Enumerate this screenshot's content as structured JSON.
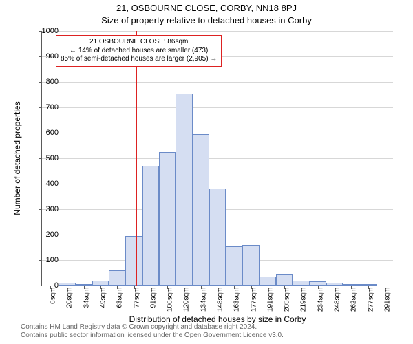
{
  "titles": {
    "main": "21, OSBOURNE CLOSE, CORBY, NN18 8PJ",
    "sub": "Size of property relative to detached houses in Corby"
  },
  "axes": {
    "ylabel": "Number of detached properties",
    "xlabel": "Distribution of detached houses by size in Corby",
    "ylim_max": 1000,
    "ytick_step": 100,
    "grid_color": "#d7d7d7",
    "label_fontsize": 12,
    "tick_fontsize": 11
  },
  "chart": {
    "type": "histogram",
    "bar_fill": "#d5def2",
    "bar_border": "#6b8bc8",
    "bar_border_width": 1,
    "plot_background": "#ffffff",
    "bars": [
      {
        "label": "6sqm",
        "value": 0
      },
      {
        "label": "20sqm",
        "value": 10
      },
      {
        "label": "34sqm",
        "value": 5
      },
      {
        "label": "49sqm",
        "value": 20
      },
      {
        "label": "63sqm",
        "value": 60
      },
      {
        "label": "77sqm",
        "value": 195
      },
      {
        "label": "91sqm",
        "value": 470
      },
      {
        "label": "106sqm",
        "value": 525
      },
      {
        "label": "120sqm",
        "value": 755
      },
      {
        "label": "134sqm",
        "value": 595
      },
      {
        "label": "148sqm",
        "value": 380
      },
      {
        "label": "163sqm",
        "value": 155
      },
      {
        "label": "177sqm",
        "value": 160
      },
      {
        "label": "191sqm",
        "value": 35
      },
      {
        "label": "205sqm",
        "value": 45
      },
      {
        "label": "219sqm",
        "value": 20
      },
      {
        "label": "234sqm",
        "value": 15
      },
      {
        "label": "248sqm",
        "value": 10
      },
      {
        "label": "262sqm",
        "value": 5
      },
      {
        "label": "277sqm",
        "value": 5
      },
      {
        "label": "291sqm",
        "value": 0
      }
    ]
  },
  "marker": {
    "position_bin_index": 5.63,
    "line_color": "#d22",
    "line_width": 1,
    "annotation": {
      "lines": [
        "21 OSBOURNE CLOSE: 86sqm",
        "← 14% of detached houses are smaller (473)",
        "85% of semi-detached houses are larger (2,905) →"
      ],
      "border_color": "#d22",
      "border_width": 1,
      "box_fontsize": 10
    }
  },
  "footer": {
    "line1": "Contains HM Land Registry data © Crown copyright and database right 2024.",
    "line2": "Contains public sector information licensed under the Open Government Licence v3.0.",
    "color": "#666"
  }
}
